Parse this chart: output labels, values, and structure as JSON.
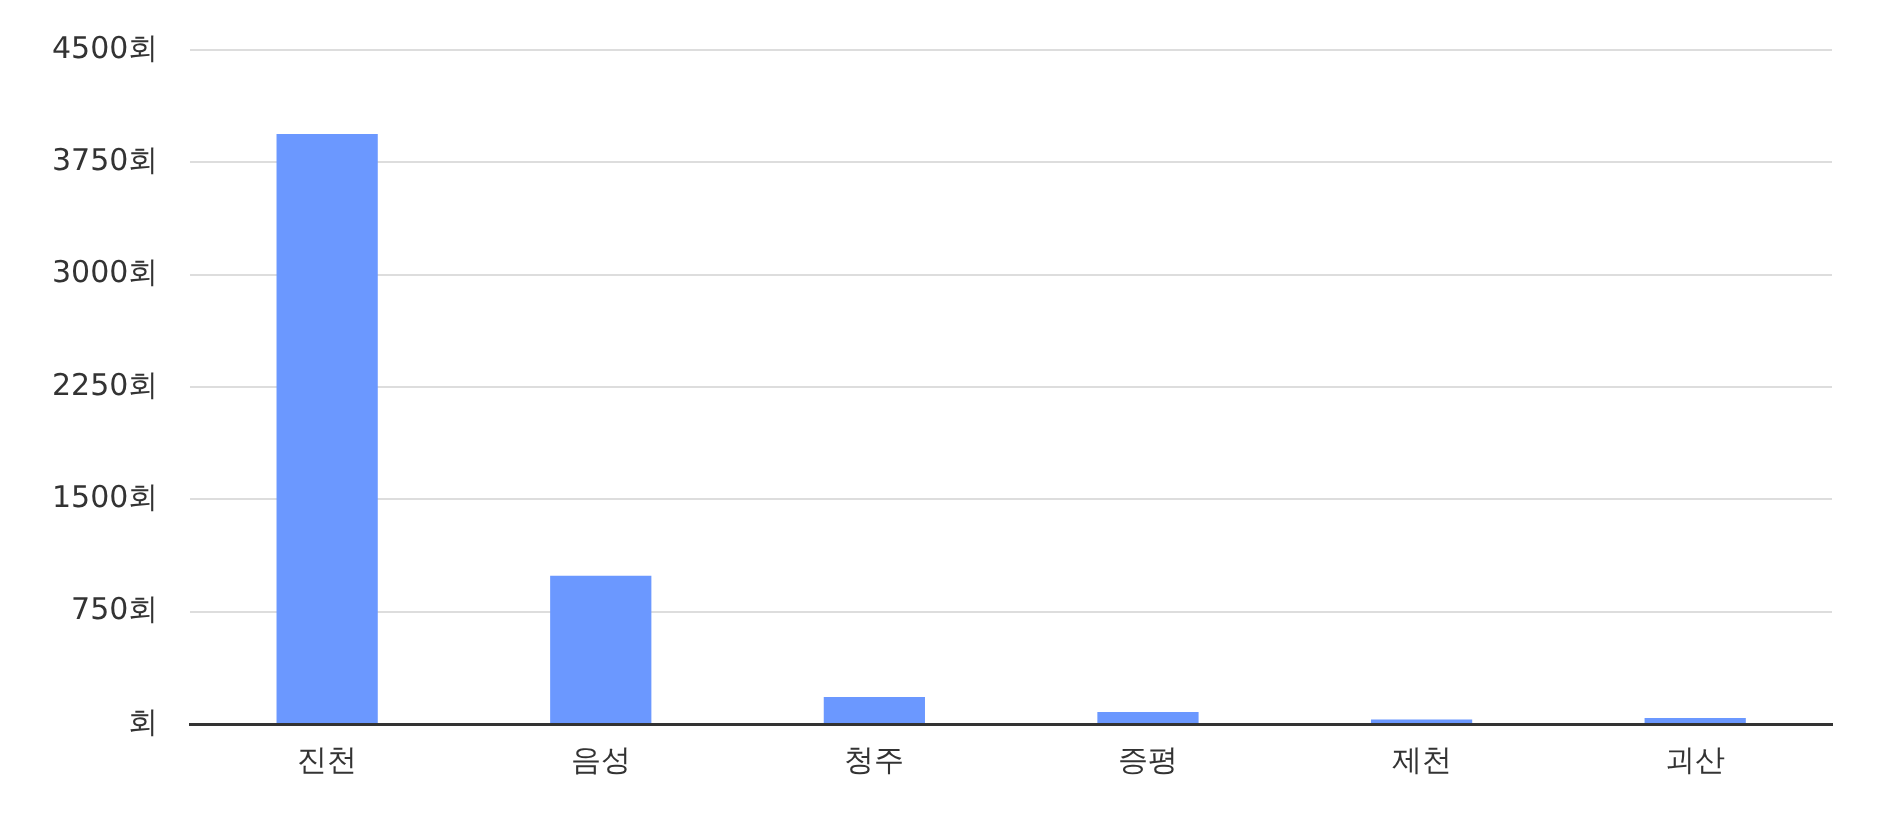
{
  "chart_data": {
    "type": "bar",
    "categories": [
      "진천",
      "음성",
      "청주",
      "증평",
      "제천",
      "괴산"
    ],
    "values": [
      3940,
      990,
      180,
      80,
      30,
      40
    ],
    "color": "#6b98ff",
    "ylim": [
      0,
      4500
    ],
    "yticks": [
      {
        "value": 0,
        "label": "회"
      },
      {
        "value": 750,
        "label": "750회"
      },
      {
        "value": 1500,
        "label": "1500회"
      },
      {
        "value": 2250,
        "label": "2250회"
      },
      {
        "value": 3000,
        "label": "3000회"
      },
      {
        "value": 3750,
        "label": "3750회"
      },
      {
        "value": 4500,
        "label": "4500회"
      }
    ],
    "grid": "y",
    "legend": false
  }
}
